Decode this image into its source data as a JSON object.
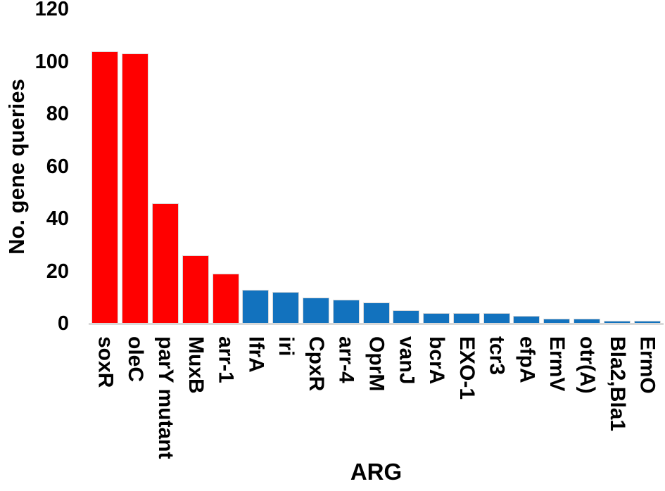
{
  "chart_data": {
    "type": "bar",
    "title": "",
    "xlabel": "ARG",
    "ylabel": "No. gene queries",
    "ylim": [
      0,
      120
    ],
    "yticks": [
      0,
      20,
      40,
      60,
      80,
      100,
      120
    ],
    "grid": false,
    "legend": "none",
    "categories": [
      "soxR",
      "oleC",
      "parY mutant",
      "MuxB",
      "arr-1",
      "IfrA",
      "iri",
      "CpxR",
      "arr-4",
      "OprM",
      "vanJ",
      "bcrA",
      "EXO-1",
      "tcr3",
      "efpA",
      "ErmV",
      "otr(A)",
      "Bla2,Bla1",
      "ErmO"
    ],
    "values": [
      104,
      103,
      46,
      26,
      19,
      13,
      12,
      10,
      9,
      8,
      5,
      4,
      4,
      4,
      3,
      2,
      2,
      1,
      1
    ],
    "bar_colors": [
      "#FF0000",
      "#FF0000",
      "#FF0000",
      "#FF0000",
      "#FF0000",
      "#1272BE",
      "#1272BE",
      "#1272BE",
      "#1272BE",
      "#1272BE",
      "#1272BE",
      "#1272BE",
      "#1272BE",
      "#1272BE",
      "#1272BE",
      "#1272BE",
      "#1272BE",
      "#1272BE",
      "#1272BE"
    ],
    "colors": {
      "red_series": "#FF0000",
      "blue_series": "#1272BE",
      "axis_line": "#D9D9D9",
      "text": "#000000"
    }
  }
}
